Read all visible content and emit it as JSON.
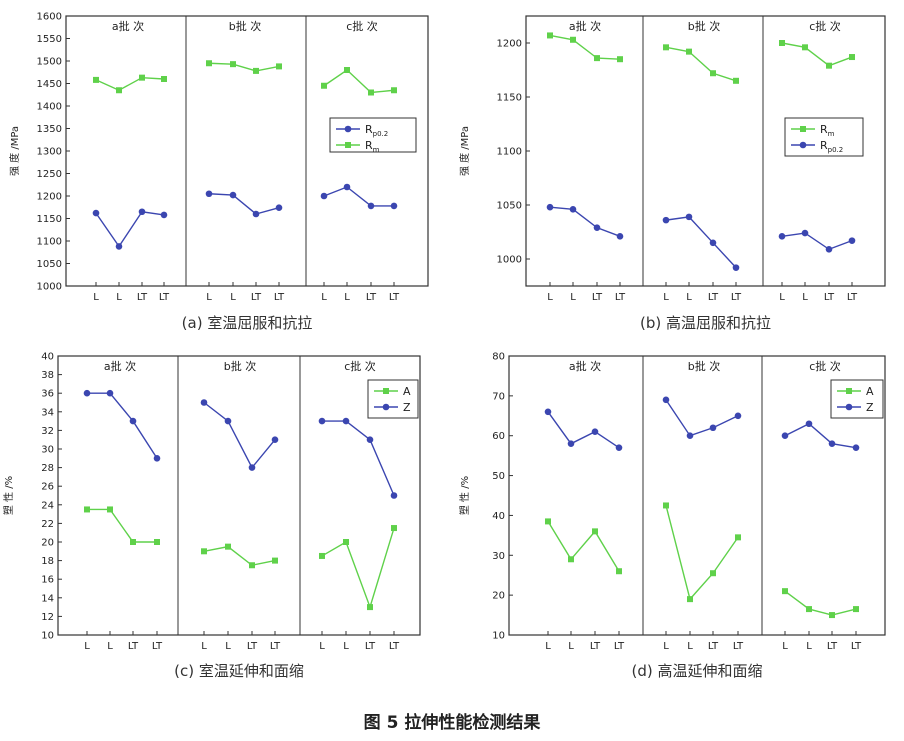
{
  "figure_title": "图 5  拉伸性能检测结果",
  "colors": {
    "blue": "#3b46b0",
    "green": "#5fd14a"
  },
  "chart_data": [
    {
      "type": "line",
      "caption": "(a) 室温屈服和抗拉",
      "ylabel": "强 度 /MPa",
      "ylim": [
        1000,
        1600
      ],
      "yticks": [
        1000,
        1050,
        1100,
        1150,
        1200,
        1250,
        1300,
        1350,
        1400,
        1450,
        1500,
        1550,
        1600
      ],
      "groups": [
        "a批 次",
        "b批 次",
        "c批 次"
      ],
      "categories": [
        "L",
        "L",
        "LT",
        "LT"
      ],
      "legend_position": "right",
      "series": [
        {
          "name": "Rp0.2",
          "name_main": "R",
          "name_sub": "p0.2",
          "color": "#3b46b0",
          "marker": "circle",
          "groups": [
            [
              1162,
              1088,
              1165,
              1158
            ],
            [
              1205,
              1202,
              1160,
              1174
            ],
            [
              1200,
              1220,
              1178,
              1178
            ]
          ]
        },
        {
          "name": "Rm",
          "name_main": "R",
          "name_sub": "m",
          "color": "#5fd14a",
          "marker": "square",
          "groups": [
            [
              1458,
              1435,
              1463,
              1460
            ],
            [
              1495,
              1493,
              1478,
              1488
            ],
            [
              1445,
              1480,
              1430,
              1435
            ]
          ]
        }
      ]
    },
    {
      "type": "line",
      "caption": "(b) 高温屈服和抗拉",
      "ylabel": "强 度 /MPa",
      "ylim": [
        975,
        1225
      ],
      "yticks": [
        1000,
        1050,
        1100,
        1150,
        1200
      ],
      "groups": [
        "a批 次",
        "b批 次",
        "c批 次"
      ],
      "categories": [
        "L",
        "L",
        "LT",
        "LT"
      ],
      "legend_position": "right",
      "series": [
        {
          "name": "Rm",
          "name_main": "R",
          "name_sub": "m",
          "color": "#5fd14a",
          "marker": "square",
          "groups": [
            [
              1207,
              1203,
              1186,
              1185
            ],
            [
              1196,
              1192,
              1172,
              1165
            ],
            [
              1200,
              1196,
              1179,
              1187
            ]
          ]
        },
        {
          "name": "Rp0.2",
          "name_main": "R",
          "name_sub": "p0.2",
          "color": "#3b46b0",
          "marker": "circle",
          "groups": [
            [
              1048,
              1046,
              1029,
              1021
            ],
            [
              1036,
              1039,
              1015,
              992
            ],
            [
              1021,
              1024,
              1009,
              1017
            ]
          ]
        }
      ]
    },
    {
      "type": "line",
      "caption": "(c) 室温延伸和面缩",
      "ylabel": "塑 性 /%",
      "ylim": [
        10,
        40
      ],
      "yticks": [
        10,
        12,
        14,
        16,
        18,
        20,
        22,
        24,
        26,
        28,
        30,
        32,
        34,
        36,
        38,
        40
      ],
      "groups": [
        "a批 次",
        "b批 次",
        "c批 次"
      ],
      "categories": [
        "L",
        "L",
        "LT",
        "LT"
      ],
      "legend_position": "top-right",
      "series": [
        {
          "name": "A",
          "name_main": "A",
          "name_sub": "",
          "color": "#5fd14a",
          "marker": "square",
          "groups": [
            [
              23.5,
              23.5,
              20.0,
              20.0
            ],
            [
              19.0,
              19.5,
              17.5,
              18.0
            ],
            [
              18.5,
              20.0,
              13.0,
              21.5
            ]
          ]
        },
        {
          "name": "Z",
          "name_main": "Z",
          "name_sub": "",
          "color": "#3b46b0",
          "marker": "circle",
          "groups": [
            [
              36.0,
              36.0,
              33.0,
              29.0
            ],
            [
              35.0,
              33.0,
              28.0,
              31.0
            ],
            [
              33.0,
              33.0,
              31.0,
              25.0
            ]
          ]
        }
      ]
    },
    {
      "type": "line",
      "caption": "(d) 高温延伸和面缩",
      "ylabel": "塑 性 /%",
      "ylim": [
        10,
        80
      ],
      "yticks": [
        10,
        20,
        30,
        40,
        50,
        60,
        70,
        80
      ],
      "groups": [
        "a批 次",
        "b批 次",
        "c批 次"
      ],
      "categories": [
        "L",
        "L",
        "LT",
        "LT"
      ],
      "legend_position": "top-right",
      "series": [
        {
          "name": "A",
          "name_main": "A",
          "name_sub": "",
          "color": "#5fd14a",
          "marker": "square",
          "groups": [
            [
              38.5,
              29.0,
              36.0,
              26.0
            ],
            [
              42.5,
              19.0,
              25.5,
              34.5
            ],
            [
              21.0,
              16.5,
              15.0,
              16.5
            ]
          ]
        },
        {
          "name": "Z",
          "name_main": "Z",
          "name_sub": "",
          "color": "#3b46b0",
          "marker": "circle",
          "groups": [
            [
              66.0,
              58.0,
              61.0,
              57.0
            ],
            [
              69.0,
              60.0,
              62.0,
              65.0
            ],
            [
              60.0,
              63.0,
              58.0,
              57.0
            ]
          ]
        }
      ]
    }
  ]
}
